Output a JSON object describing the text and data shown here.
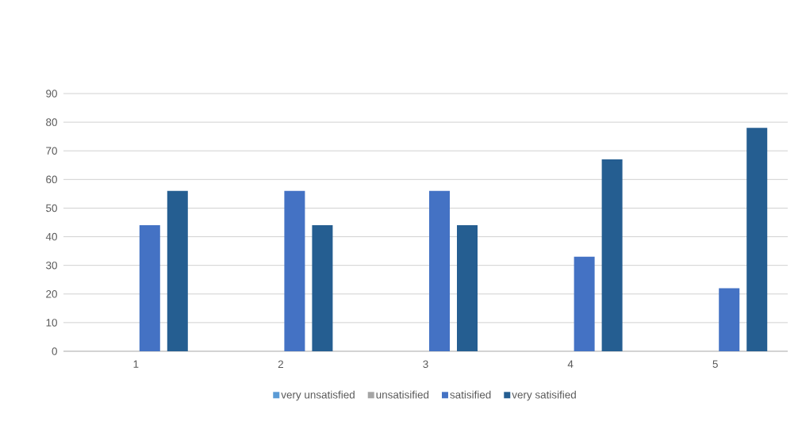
{
  "chart_data": {
    "type": "bar",
    "categories": [
      "1",
      "2",
      "3",
      "4",
      "5"
    ],
    "series": [
      {
        "name": "very unsatisfied",
        "color": "#5b9bd5",
        "values": [
          0,
          0,
          0,
          0,
          0
        ]
      },
      {
        "name": "unsatisified",
        "color": "#a5a5a5",
        "values": [
          0,
          0,
          0,
          0,
          0
        ]
      },
      {
        "name": "satisified",
        "color": "#4472c4",
        "values": [
          44,
          56,
          56,
          33,
          22
        ]
      },
      {
        "name": "very satisified",
        "color": "#255e91",
        "values": [
          56,
          44,
          44,
          67,
          78
        ]
      }
    ],
    "ylim": [
      0,
      90
    ],
    "yticks": [
      0,
      10,
      20,
      30,
      40,
      50,
      60,
      70,
      80,
      90
    ],
    "grid": "y",
    "legend": "bottom"
  }
}
